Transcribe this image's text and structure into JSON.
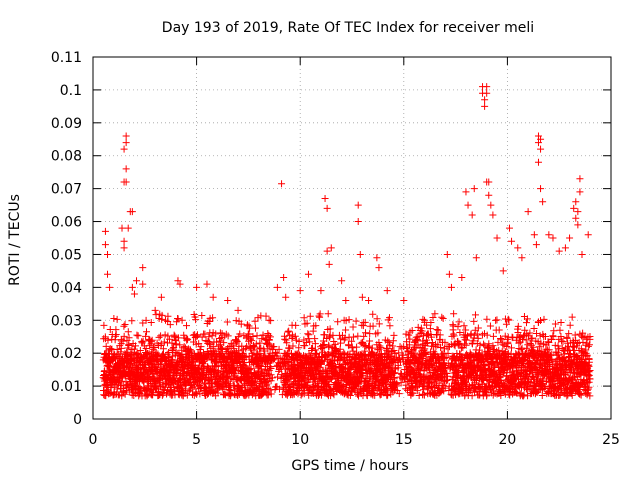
{
  "chart_data": {
    "type": "scatter",
    "title": "Day 193 of 2019, Rate Of TEC Index for receiver meli",
    "xlabel": "GPS time / hours",
    "ylabel": "ROTI / TECUs",
    "xlim": [
      0,
      25
    ],
    "ylim": [
      0,
      0.11
    ],
    "xticks": [
      0,
      5,
      10,
      15,
      20,
      25
    ],
    "xtick_labels": [
      "0",
      "5",
      "10",
      "15",
      "20",
      "25"
    ],
    "yticks": [
      0,
      0.01,
      0.02,
      0.03,
      0.04,
      0.05,
      0.06,
      0.07,
      0.08,
      0.09,
      0.1,
      0.11
    ],
    "ytick_labels": [
      "0",
      "0.01",
      "0.02",
      "0.03",
      "0.04",
      "0.05",
      "0.06",
      "0.07",
      "0.08",
      "0.09",
      "0.1",
      "0.11"
    ],
    "grid": true,
    "marker": "+",
    "series": [
      {
        "name": "ROTI",
        "color": "#ff0000",
        "profile": {
          "x_start": 0.5,
          "x_end": 24.0,
          "x_step": 0.015,
          "typical_range": [
            0.005,
            0.03
          ],
          "quiet_gaps": [
            [
              8.6,
              9.2
            ],
            [
              14.6,
              15.1
            ],
            [
              17.0,
              17.3
            ]
          ]
        },
        "x": [
          0.6,
          0.6,
          0.7,
          0.7,
          0.8,
          1.4,
          1.5,
          1.5,
          1.5,
          1.5,
          1.6,
          1.6,
          1.6,
          1.6,
          1.7,
          1.8,
          1.9,
          1.9,
          2.0,
          2.1,
          2.4,
          2.4,
          3.0,
          3.3,
          3.5,
          4.1,
          4.2,
          4.3,
          5.0,
          5.5,
          5.8,
          6.5,
          7.0,
          8.5,
          8.9,
          9.1,
          9.2,
          9.3,
          10.0,
          10.4,
          11.0,
          11.2,
          11.3,
          11.3,
          11.4,
          11.5,
          12.0,
          12.2,
          12.8,
          12.8,
          12.9,
          13.0,
          13.3,
          13.7,
          13.8,
          14.2,
          15.0,
          16.0,
          16.5,
          17.1,
          17.2,
          17.3,
          17.8,
          18.0,
          18.1,
          18.3,
          18.4,
          18.5,
          18.8,
          18.8,
          18.9,
          18.9,
          19.0,
          19.0,
          19.0,
          19.1,
          19.1,
          19.2,
          19.3,
          19.5,
          19.8,
          20.1,
          20.2,
          20.5,
          20.7,
          21.0,
          21.3,
          21.4,
          21.5,
          21.5,
          21.5,
          21.6,
          21.6,
          21.6,
          21.7,
          22.0,
          22.2,
          22.5,
          22.8,
          23.0,
          23.2,
          23.3,
          23.3,
          23.4,
          23.4,
          23.5,
          23.5,
          23.6,
          23.9
        ],
        "y": [
          0.057,
          0.053,
          0.05,
          0.044,
          0.04,
          0.058,
          0.054,
          0.052,
          0.072,
          0.082,
          0.084,
          0.086,
          0.076,
          0.072,
          0.058,
          0.063,
          0.063,
          0.04,
          0.038,
          0.042,
          0.046,
          0.041,
          0.033,
          0.037,
          0.03,
          0.042,
          0.041,
          0.03,
          0.04,
          0.041,
          0.037,
          0.036,
          0.033,
          0.03,
          0.04,
          0.0715,
          0.043,
          0.037,
          0.039,
          0.044,
          0.039,
          0.067,
          0.064,
          0.051,
          0.047,
          0.052,
          0.042,
          0.036,
          0.065,
          0.06,
          0.05,
          0.037,
          0.036,
          0.049,
          0.046,
          0.039,
          0.036,
          0.03,
          0.032,
          0.05,
          0.044,
          0.04,
          0.043,
          0.069,
          0.065,
          0.062,
          0.07,
          0.049,
          0.101,
          0.099,
          0.097,
          0.095,
          0.101,
          0.099,
          0.072,
          0.072,
          0.068,
          0.065,
          0.062,
          0.055,
          0.045,
          0.058,
          0.054,
          0.052,
          0.049,
          0.063,
          0.056,
          0.053,
          0.086,
          0.084,
          0.078,
          0.085,
          0.082,
          0.07,
          0.066,
          0.056,
          0.055,
          0.051,
          0.052,
          0.055,
          0.064,
          0.066,
          0.061,
          0.063,
          0.059,
          0.073,
          0.069,
          0.05,
          0.056
        ]
      }
    ]
  }
}
